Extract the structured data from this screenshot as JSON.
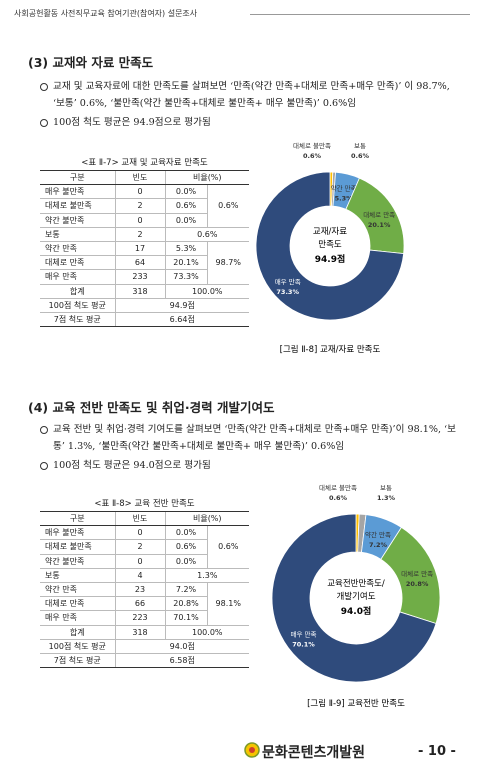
{
  "header": "사회공헌활동 사전직무교육 참여기관(참여자) 설문조사",
  "sections": [
    {
      "title": "(3) 교재와 자료 만족도",
      "bullets": [
        "교재 및 교육자료에 대한 만족도를 살펴보면 ‘만족(약간 만족+대체로 만족+매우 만족)’ 이 98.7%, ‘보통’ 0.6%, ‘불만족(약간 불만족+대체로 불만족+ 매우 불만족)’ 0.6%임",
        "100점 척도 평균은 94.9점으로 평가됨"
      ],
      "table": {
        "caption": "<표 Ⅱ-7> 교재 및 교육자료 만족도",
        "columns": [
          "구분",
          "빈도",
          "비율(%)"
        ],
        "rows": [
          [
            "매우 불만족",
            "0",
            "0.0%",
            "0.6%"
          ],
          [
            "대체로 불만족",
            "2",
            "0.6%"
          ],
          [
            "약간 불만족",
            "0",
            "0.0%"
          ],
          [
            "보통",
            "2",
            "0.6%"
          ],
          [
            "약간 만족",
            "17",
            "5.3%",
            "98.7%"
          ],
          [
            "대체로 만족",
            "64",
            "20.1%"
          ],
          [
            "매우 만족",
            "233",
            "73.3%"
          ],
          [
            "합계",
            "318",
            "100.0%"
          ],
          [
            "100점 척도 평균",
            "94.9점"
          ],
          [
            "7점 척도 평균",
            "6.64점"
          ]
        ]
      }
    },
    {
      "title": "(4) 교육 전반 만족도 및 취업·경력 개발기여도",
      "bullets": [
        "교육 전반 및 취업·경력 기여도를 살펴보면 ‘만족(약간 만족+대체로 만족+매우 만족)’이 98.1%, ‘보통’ 1.3%, ‘불만족(약간 불만족+대체로 불만족+ 매우 불만족)’ 0.6%임",
        "100점 척도 평균은 94.0점으로 평가됨"
      ],
      "table": {
        "caption": "<표 Ⅱ-8> 교육 전반 만족도",
        "columns": [
          "구분",
          "빈도",
          "비율(%)"
        ],
        "rows": [
          [
            "매우 불만족",
            "0",
            "0.0%",
            "0.6%"
          ],
          [
            "대체로 불만족",
            "2",
            "0.6%"
          ],
          [
            "약간 불만족",
            "0",
            "0.0%"
          ],
          [
            "보통",
            "4",
            "1.3%"
          ],
          [
            "약간 만족",
            "23",
            "7.2%",
            "98.1%"
          ],
          [
            "대체로 만족",
            "66",
            "20.8%"
          ],
          [
            "매우 만족",
            "223",
            "70.1%"
          ],
          [
            "합계",
            "318",
            "100.0%"
          ],
          [
            "100점 척도 평균",
            "94.0점"
          ],
          [
            "7점 척도 평균",
            "6.58점"
          ]
        ]
      }
    }
  ],
  "chart_data": [
    {
      "type": "donut",
      "caption": "[그림 Ⅱ-8] 교재/자료 만족도",
      "center_lines": [
        "교재/자료",
        "만족도"
      ],
      "center_value": "94.9점",
      "categories": [
        "대체로 불만족",
        "보통",
        "약간 만족",
        "대체로 만족",
        "매우 만족"
      ],
      "values": [
        0.6,
        0.6,
        5.3,
        20.1,
        73.3
      ],
      "value_labels": [
        "0.6%",
        "0.6%",
        "5.3%",
        "20.1%",
        "73.3%"
      ],
      "colors": [
        "#ffc000",
        "#a5a5a5",
        "#5b9bd5",
        "#70ad47",
        "#2f4b7c"
      ]
    },
    {
      "type": "donut",
      "caption": "[그림 Ⅱ-9] 교육전반 만족도",
      "center_lines": [
        "교육전반만족도/",
        "개발기여도"
      ],
      "center_value": "94.0점",
      "categories": [
        "대체로 불만족",
        "보통",
        "약간 만족",
        "대체로 만족",
        "매우 만족"
      ],
      "values": [
        0.6,
        1.3,
        7.2,
        20.8,
        70.1
      ],
      "value_labels": [
        "0.6%",
        "1.3%",
        "7.2%",
        "20.8%",
        "70.1%"
      ],
      "colors": [
        "#ffc000",
        "#a5a5a5",
        "#5b9bd5",
        "#70ad47",
        "#2f4b7c"
      ]
    }
  ],
  "footer": {
    "logo_text": "문화콘텐츠개발원",
    "page": "- 10 -"
  }
}
